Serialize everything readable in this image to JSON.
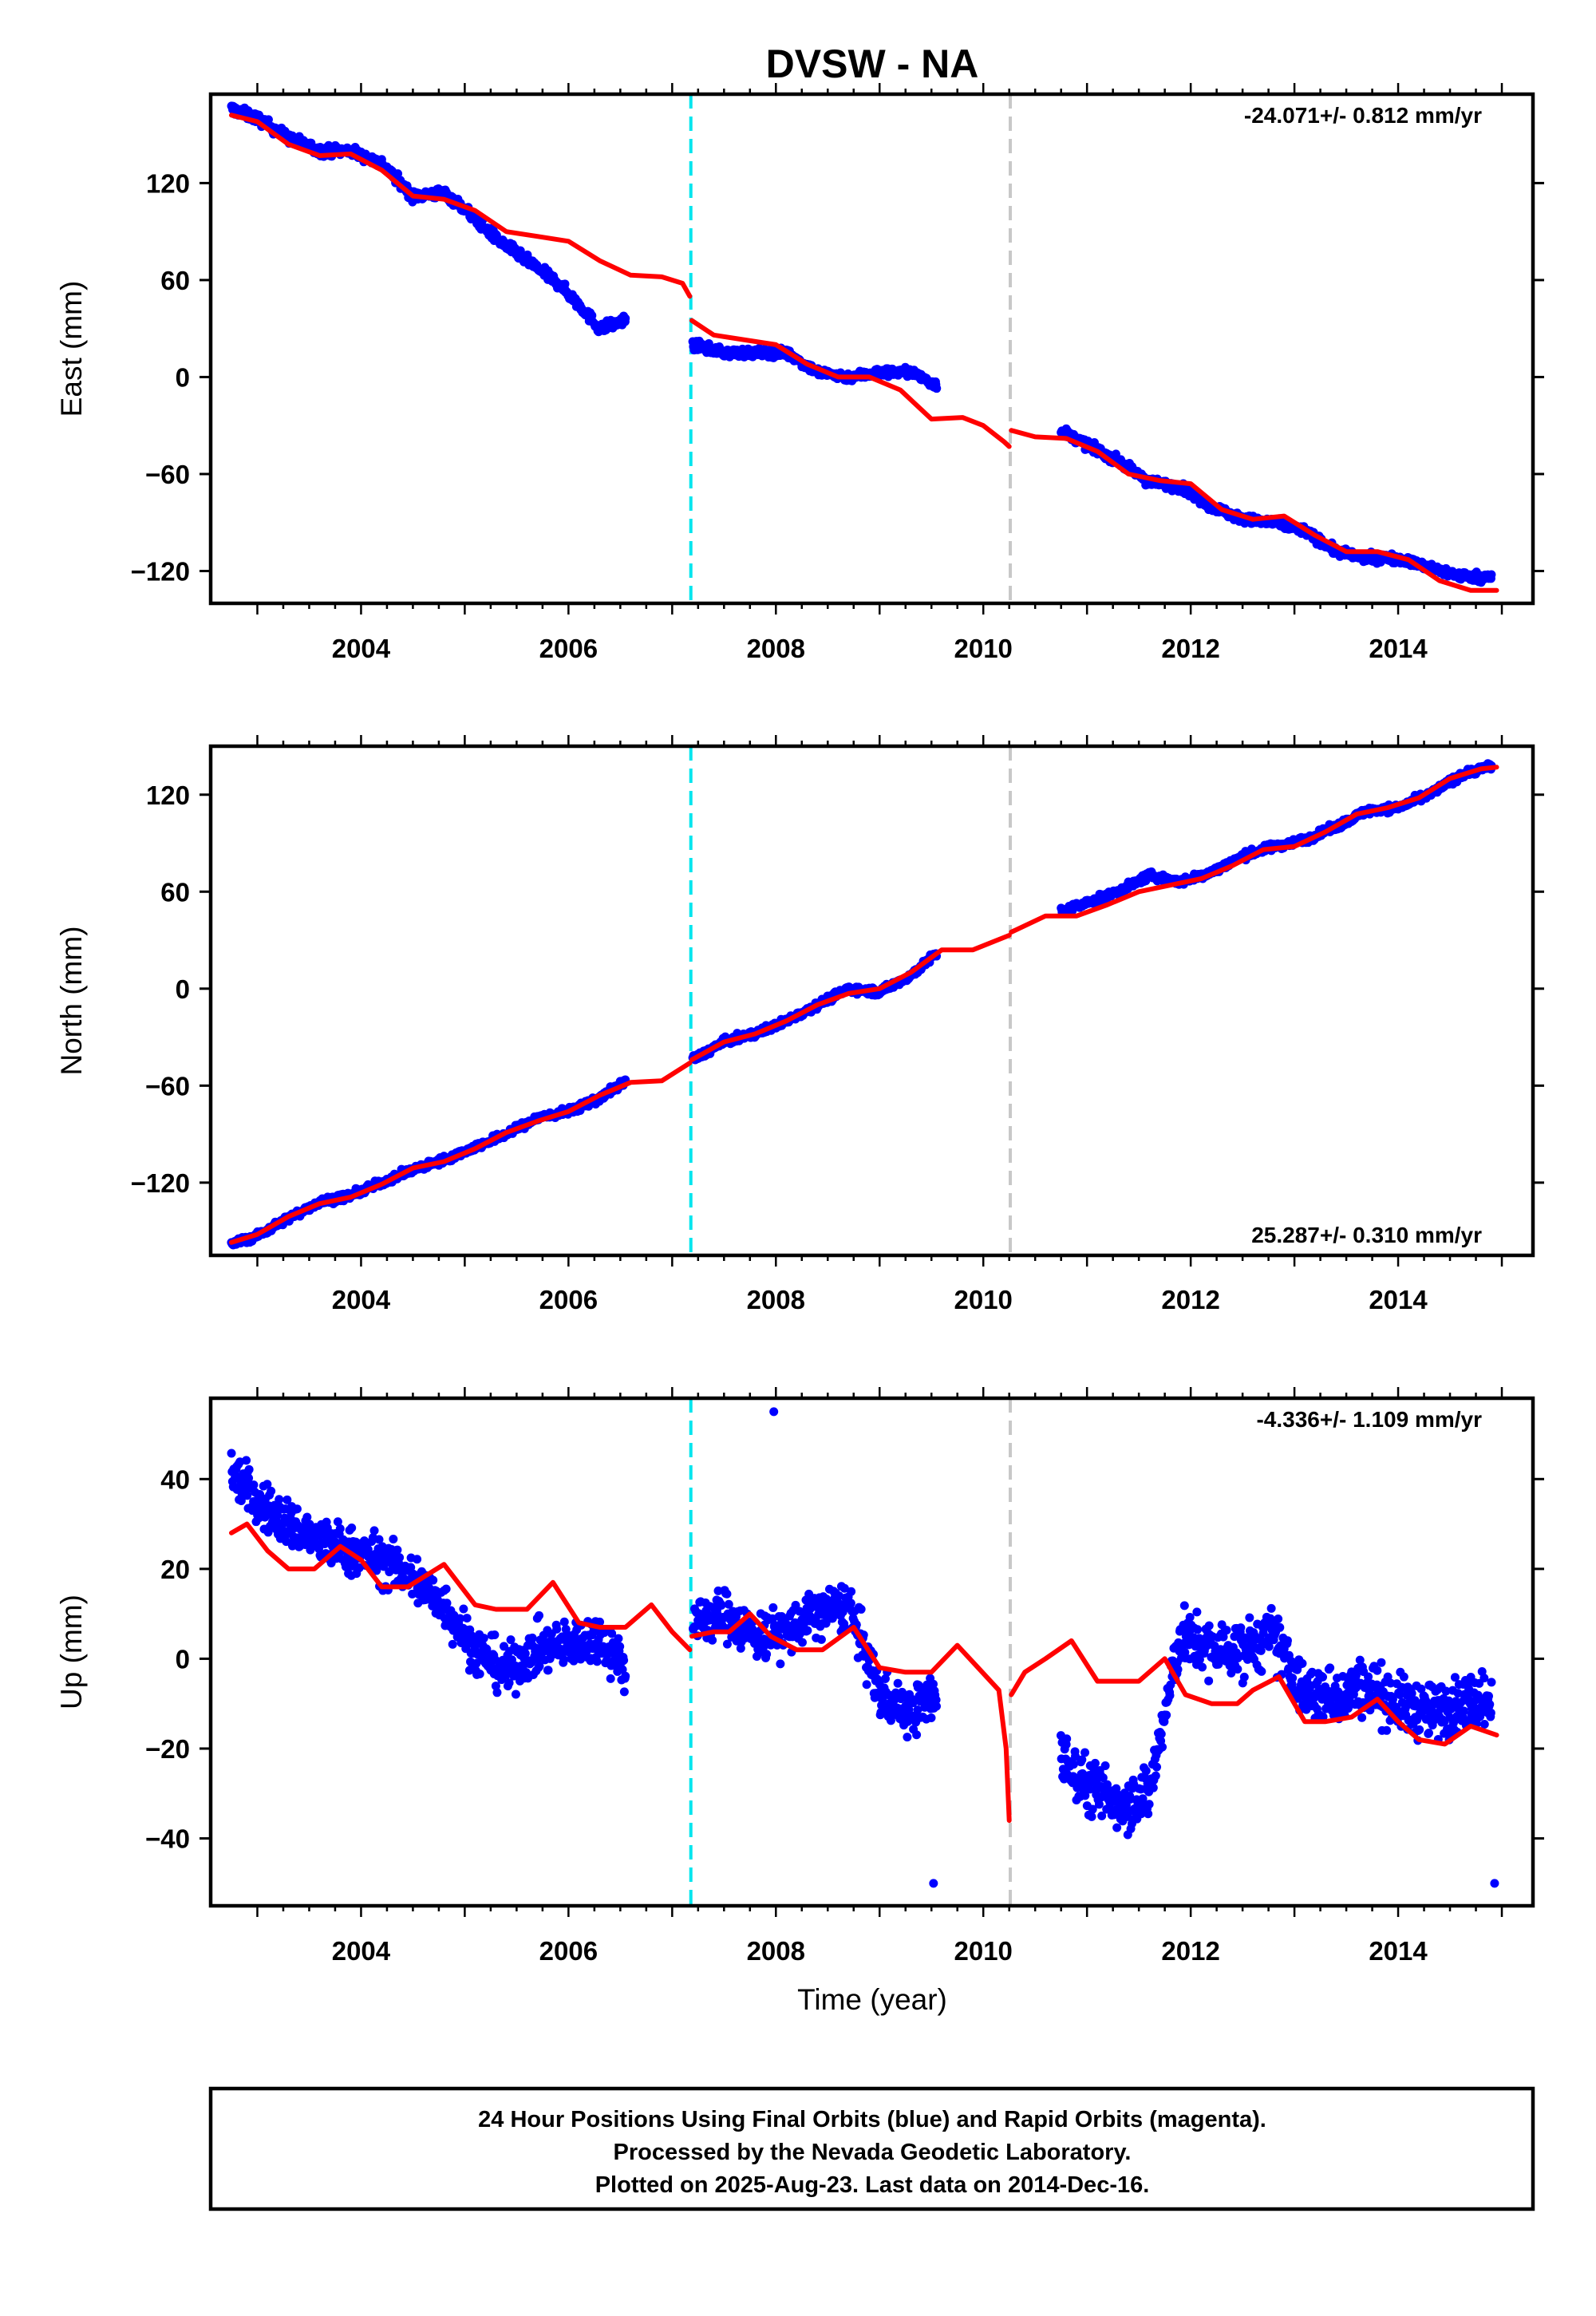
{
  "title": "DVSW - NA",
  "colors": {
    "data": "#0000ff",
    "model": "#ff0000",
    "break_equipment": "#00e5ee",
    "break_other": "#c8c8c8"
  },
  "xaxis": {
    "label": "Time (year)",
    "range": [
      2002.55,
      2015.3
    ],
    "ticks": [
      2004,
      2006,
      2008,
      2010,
      2012,
      2014
    ]
  },
  "breaks": [
    {
      "x": 2007.18,
      "kind": "equipment",
      "color": "#00e5ee"
    },
    {
      "x": 2010.26,
      "kind": "other",
      "color": "#c8c8c8"
    }
  ],
  "footer": {
    "line1": "24 Hour Positions Using Final Orbits (blue) and Rapid Orbits (magenta).",
    "line2": "Processed by the Nevada Geodetic Laboratory.",
    "line3": "Plotted on 2025-Aug-23. Last data on 2014-Dec-16."
  },
  "chart_data": [
    {
      "type": "scatter",
      "ylabel": "East (mm)",
      "ylim": [
        -140,
        175
      ],
      "yticks": [
        -120,
        -60,
        0,
        60,
        120
      ],
      "tick_labels": [
        "−120",
        "−60",
        "0",
        "60",
        "120"
      ],
      "rate": "-24.071+/- 0.812 mm/yr",
      "series": [
        {
          "role": "observations",
          "segments": [
            {
              "x": [
                2002.75,
                2003.0,
                2003.3,
                2003.6,
                2003.9,
                2004.2,
                2004.5,
                2004.8,
                2005.0,
                2005.3,
                2005.6,
                2005.9,
                2006.1,
                2006.3,
                2006.55
              ],
              "y": [
                166,
                160,
                148,
                140,
                140,
                132,
                112,
                114,
                104,
                86,
                72,
                58,
                45,
                30,
                35
              ],
              "noise": 3.5
            },
            {
              "x": [
                2007.2,
                2007.5,
                2007.8,
                2008.1,
                2008.4,
                2008.7,
                2009.0,
                2009.3,
                2009.55
              ],
              "y": [
                20,
                15,
                15,
                15,
                3,
                0,
                3,
                3,
                -5
              ],
              "noise": 3
            },
            {
              "x": [
                2010.75,
                2011.0,
                2011.3,
                2011.6,
                2011.9,
                2012.2,
                2012.5,
                2012.8,
                2013.1,
                2013.4,
                2013.7,
                2014.0,
                2014.3,
                2014.6,
                2014.9
              ],
              "y": [
                -33,
                -42,
                -52,
                -65,
                -68,
                -80,
                -88,
                -90,
                -95,
                -108,
                -112,
                -112,
                -118,
                -123,
                -124
              ],
              "noise": 3
            }
          ]
        },
        {
          "role": "model",
          "segments": [
            {
              "x": [
                2002.75,
                2003.0,
                2003.3,
                2003.6,
                2003.9,
                2004.2,
                2004.5,
                2004.8,
                2005.1,
                2005.4,
                2005.7,
                2006.0,
                2006.3,
                2006.6,
                2006.9,
                2007.1,
                2007.17
              ],
              "y": [
                162,
                158,
                144,
                137,
                138,
                128,
                112,
                110,
                103,
                90,
                87,
                84,
                72,
                63,
                62,
                58,
                50
              ]
            },
            {
              "x": [
                2007.19,
                2007.4,
                2007.7,
                2008.0,
                2008.3,
                2008.6,
                2008.9,
                2009.2,
                2009.5,
                2009.8,
                2010.0,
                2010.2,
                2010.25
              ],
              "y": [
                35,
                26,
                23,
                20,
                8,
                0,
                0,
                -8,
                -26,
                -25,
                -30,
                -40,
                -43
              ]
            },
            {
              "x": [
                2010.27,
                2010.5,
                2010.8,
                2011.1,
                2011.4,
                2011.7,
                2012.0,
                2012.3,
                2012.6,
                2012.9,
                2013.2,
                2013.5,
                2013.8,
                2014.1,
                2014.4,
                2014.7,
                2014.95
              ],
              "y": [
                -33,
                -37,
                -38,
                -46,
                -60,
                -64,
                -66,
                -82,
                -88,
                -86,
                -98,
                -108,
                -108,
                -113,
                -126,
                -132,
                -132
              ]
            }
          ]
        }
      ]
    },
    {
      "type": "scatter",
      "ylabel": "North (mm)",
      "ylim": [
        -165,
        150
      ],
      "yticks": [
        -120,
        -60,
        0,
        60,
        120
      ],
      "tick_labels": [
        "−120",
        "−60",
        "0",
        "60",
        "120"
      ],
      "rate": "25.287+/- 0.310 mm/yr",
      "series": [
        {
          "role": "observations",
          "segments": [
            {
              "x": [
                2002.75,
                2003.0,
                2003.3,
                2003.6,
                2003.9,
                2004.2,
                2004.5,
                2004.8,
                2005.1,
                2005.4,
                2005.7,
                2006.0,
                2006.3,
                2006.55
              ],
              "y": [
                -158,
                -153,
                -142,
                -132,
                -128,
                -120,
                -112,
                -106,
                -98,
                -90,
                -80,
                -76,
                -68,
                -57
              ],
              "noise": 2.5
            },
            {
              "x": [
                2007.2,
                2007.5,
                2007.8,
                2008.1,
                2008.4,
                2008.7,
                2009.0,
                2009.3,
                2009.55
              ],
              "y": [
                -44,
                -33,
                -28,
                -20,
                -10,
                0,
                -2,
                8,
                22
              ],
              "noise": 2.5
            },
            {
              "x": [
                2010.75,
                2011.0,
                2011.3,
                2011.6,
                2011.9,
                2012.2,
                2012.5,
                2012.8,
                2013.1,
                2013.4,
                2013.7,
                2014.0,
                2014.3,
                2014.6,
                2014.9
              ],
              "y": [
                48,
                53,
                60,
                70,
                66,
                72,
                82,
                88,
                92,
                100,
                110,
                112,
                120,
                132,
                138
              ],
              "noise": 2.5
            }
          ]
        },
        {
          "role": "model",
          "segments": [
            {
              "x": [
                2002.75,
                2003.0,
                2003.3,
                2003.6,
                2003.9,
                2004.2,
                2004.5,
                2004.8,
                2005.1,
                2005.4,
                2005.7,
                2006.0,
                2006.3,
                2006.6,
                2006.9,
                2007.17
              ],
              "y": [
                -157,
                -152,
                -141,
                -133,
                -129,
                -121,
                -111,
                -107,
                -99,
                -89,
                -82,
                -76,
                -66,
                -58,
                -57,
                -46
              ]
            },
            {
              "x": [
                2007.19,
                2007.5,
                2007.8,
                2008.1,
                2008.4,
                2008.7,
                2009.0,
                2009.3,
                2009.6,
                2009.9,
                2010.25
              ],
              "y": [
                -44,
                -33,
                -28,
                -20,
                -10,
                -3,
                0,
                10,
                24,
                24,
                33
              ]
            },
            {
              "x": [
                2010.27,
                2010.6,
                2010.9,
                2011.2,
                2011.5,
                2011.8,
                2012.1,
                2012.4,
                2012.7,
                2013.0,
                2013.3,
                2013.6,
                2013.9,
                2014.2,
                2014.5,
                2014.8,
                2014.95
              ],
              "y": [
                35,
                45,
                45,
                52,
                60,
                64,
                68,
                76,
                86,
                88,
                97,
                108,
                112,
                118,
                130,
                136,
                137
              ]
            }
          ]
        }
      ]
    },
    {
      "type": "scatter",
      "ylabel": "Up (mm)",
      "ylim": [
        -55,
        58
      ],
      "yticks": [
        -40,
        -20,
        0,
        20,
        40
      ],
      "tick_labels": [
        "−40",
        "−20",
        "0",
        "20",
        "40"
      ],
      "rate": "-4.336+/- 1.109 mm/yr",
      "series": [
        {
          "role": "observations",
          "segments": [
            {
              "x": [
                2002.75,
                2003.0,
                2003.3,
                2003.6,
                2003.9,
                2004.2,
                2004.5,
                2004.8,
                2005.1,
                2005.4,
                2005.7,
                2006.0,
                2006.3,
                2006.55
              ],
              "y": [
                42,
                35,
                30,
                26,
                24,
                22,
                18,
                12,
                2,
                -3,
                2,
                3,
                5,
                -2
              ],
              "noise": 6
            },
            {
              "x": [
                2007.2,
                2007.5,
                2007.8,
                2008.1,
                2008.4,
                2008.7,
                2009.0,
                2009.3,
                2009.55
              ],
              "y": [
                8,
                10,
                5,
                6,
                10,
                12,
                -8,
                -12,
                -8
              ],
              "noise": 6
            },
            {
              "x": [
                2010.75,
                2011.0,
                2011.3,
                2011.6,
                2011.9,
                2012.2,
                2012.5,
                2012.8,
                2013.1,
                2013.4,
                2013.7,
                2014.0,
                2014.3,
                2014.6,
                2014.9
              ],
              "y": [
                -22,
                -28,
                -32,
                -30,
                5,
                2,
                2,
                5,
                -8,
                -8,
                -6,
                -10,
                -12,
                -10,
                -8
              ],
              "noise": 7
            }
          ],
          "outliers": [
            {
              "x": 2007.98,
              "y": 55
            },
            {
              "x": 2009.52,
              "y": -50
            },
            {
              "x": 2014.93,
              "y": -50
            }
          ]
        },
        {
          "role": "model",
          "segments": [
            {
              "x": [
                2002.75,
                2002.9,
                2003.1,
                2003.3,
                2003.55,
                2003.8,
                2004.0,
                2004.2,
                2004.45,
                2004.8,
                2005.1,
                2005.3,
                2005.6,
                2005.85,
                2006.1,
                2006.3,
                2006.55,
                2006.8,
                2007.0,
                2007.17
              ],
              "y": [
                28,
                30,
                24,
                20,
                20,
                25,
                22,
                16,
                16,
                21,
                12,
                11,
                11,
                17,
                8,
                7,
                7,
                12,
                6,
                2
              ]
            },
            {
              "x": [
                2007.19,
                2007.4,
                2007.55,
                2007.75,
                2007.95,
                2008.2,
                2008.45,
                2008.75,
                2009.0,
                2009.25,
                2009.5,
                2009.75,
                2009.95,
                2010.15,
                2010.22,
                2010.25
              ],
              "y": [
                5,
                6,
                6,
                10,
                5,
                2,
                2,
                7,
                -2,
                -3,
                -3,
                3,
                -2,
                -7,
                -20,
                -36
              ]
            },
            {
              "x": [
                2010.27,
                2010.4,
                2010.6,
                2010.85,
                2011.1,
                2011.3,
                2011.5,
                2011.75,
                2011.95,
                2012.2,
                2012.45,
                2012.6,
                2012.85,
                2013.1,
                2013.3,
                2013.55,
                2013.8,
                2014.0,
                2014.2,
                2014.45,
                2014.7,
                2014.95
              ],
              "y": [
                -8,
                -3,
                0,
                4,
                -5,
                -5,
                -5,
                0,
                -8,
                -10,
                -10,
                -7,
                -4,
                -14,
                -14,
                -13,
                -9,
                -14,
                -18,
                -19,
                -15,
                -17
              ]
            }
          ]
        }
      ]
    }
  ]
}
